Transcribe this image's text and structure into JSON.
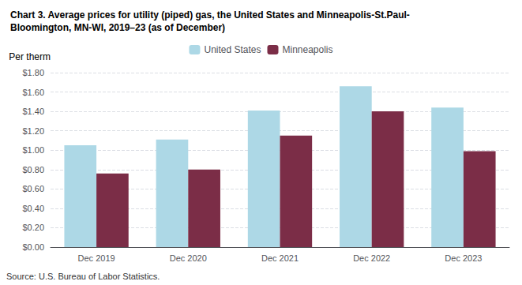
{
  "chart_data": {
    "type": "bar",
    "title": "Chart 3. Average prices for utility (piped) gas, the United States and Minneapolis-St.Paul-\nBloomington, MN-WI, 2019–23 (as of December)",
    "y_label": "Per therm",
    "source": "Source: U.S. Bureau of Labor Statistics.",
    "categories": [
      "Dec 2019",
      "Dec 2020",
      "Dec 2021",
      "Dec 2022",
      "Dec 2023"
    ],
    "series": [
      {
        "name": "United States",
        "color": "#add8e6",
        "values": [
          1.05,
          1.11,
          1.41,
          1.66,
          1.44
        ]
      },
      {
        "name": "Minneapolis",
        "color": "#7b2d47",
        "values": [
          0.76,
          0.8,
          1.15,
          1.4,
          0.99
        ]
      }
    ],
    "ylim": [
      0.0,
      1.8
    ],
    "yticks": [
      {
        "value": 0.0,
        "label": "$0.00"
      },
      {
        "value": 0.2,
        "label": "$0.20"
      },
      {
        "value": 0.4,
        "label": "$0.40"
      },
      {
        "value": 0.6,
        "label": "$0.60"
      },
      {
        "value": 0.8,
        "label": "$0.80"
      },
      {
        "value": 1.0,
        "label": "$1.00"
      },
      {
        "value": 1.2,
        "label": "$1.20"
      },
      {
        "value": 1.4,
        "label": "$1.40"
      },
      {
        "value": 1.6,
        "label": "$1.60"
      },
      {
        "value": 1.8,
        "label": "$1.80"
      }
    ],
    "grid": true,
    "legend": "top"
  }
}
